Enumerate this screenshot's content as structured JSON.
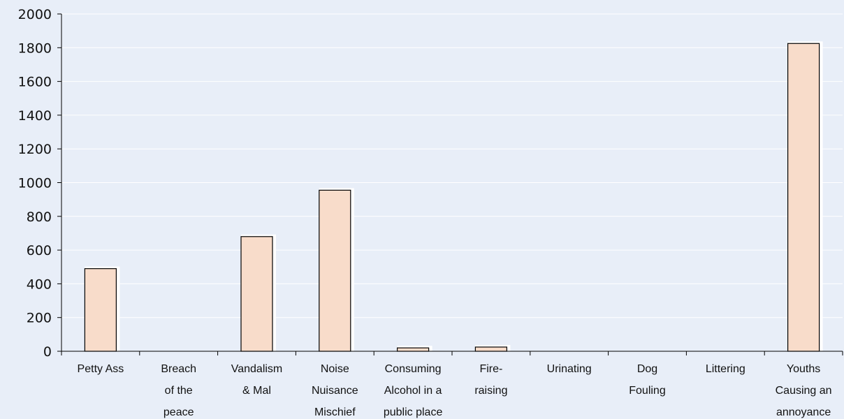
{
  "chart_data": {
    "type": "bar",
    "title": "",
    "xlabel": "",
    "ylabel": "",
    "ylim": [
      0,
      2000
    ],
    "yticks": [
      0,
      200,
      400,
      600,
      800,
      1000,
      1200,
      1400,
      1600,
      1800,
      2000
    ],
    "grid": true,
    "legend": "none",
    "categories": [
      [
        "Petty Ass"
      ],
      [
        "Breach",
        "of the",
        "peace"
      ],
      [
        "Vandalism",
        "& Mal"
      ],
      [
        "Noise",
        "Nuisance",
        "Mischief"
      ],
      [
        "Consuming",
        "Alcohol in a",
        "public place"
      ],
      [
        "Fire-",
        "raising"
      ],
      [
        "Urinating"
      ],
      [
        "Dog",
        "Fouling"
      ],
      [
        "Littering"
      ],
      [
        "Youths",
        "Causing an",
        "annoyance"
      ]
    ],
    "values": [
      490,
      0,
      680,
      955,
      20,
      25,
      0,
      0,
      0,
      1825
    ],
    "colors": {
      "background": "#e8eef8",
      "bar_fill": "#f8dcca",
      "bar_stroke": "#000000",
      "bar_shadow": "#ffffff",
      "grid": "#ffffff",
      "axis": "#000000"
    }
  }
}
